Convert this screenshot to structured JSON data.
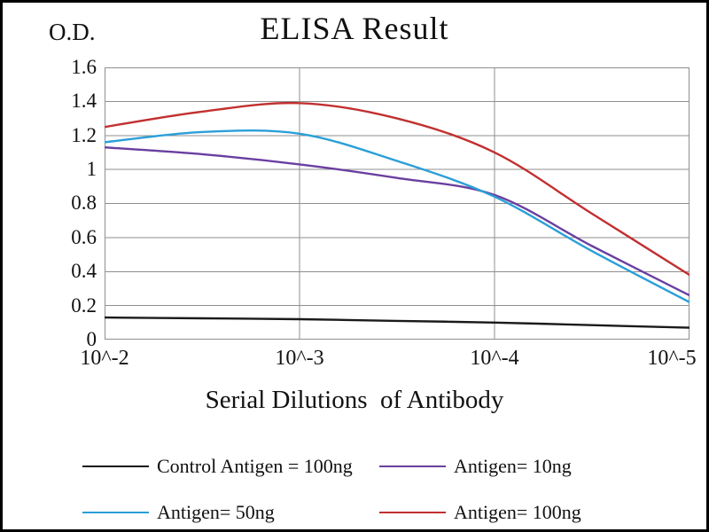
{
  "title": "ELISA Result",
  "y_axis_label": "O.D.",
  "x_axis_label": "Serial Dilutions  of Antibody",
  "chart_data": {
    "type": "line",
    "title": "ELISA Result",
    "xlabel": "Serial Dilutions  of Antibody",
    "ylabel": "O.D.",
    "grid": true,
    "legend_position": "bottom",
    "ylim": [
      0,
      1.6
    ],
    "y_ticks": [
      0,
      0.2,
      0.4,
      0.6,
      0.8,
      1,
      1.2,
      1.4,
      1.6
    ],
    "x_tick_labels": [
      "10^-2",
      "10^-3",
      "10^-4",
      "10^-5"
    ],
    "x_tick_log10": [
      -2,
      -3,
      -4,
      -5
    ],
    "x_log10": [
      -2,
      -2.5,
      -3,
      -3.5,
      -4,
      -4.5,
      -5
    ],
    "series": [
      {
        "name": "Control Antigen = 100ng",
        "color": "#1a1a1a",
        "values": [
          0.13,
          0.125,
          0.12,
          0.11,
          0.1,
          0.085,
          0.07
        ]
      },
      {
        "name": "Antigen= 10ng",
        "color": "#6a3fa0",
        "values": [
          1.13,
          1.09,
          1.03,
          0.95,
          0.85,
          0.55,
          0.26
        ]
      },
      {
        "name": "Antigen= 50ng",
        "color": "#2b9fd8",
        "values": [
          1.16,
          1.22,
          1.21,
          1.05,
          0.84,
          0.52,
          0.22
        ]
      },
      {
        "name": "Antigen= 100ng",
        "color": "#c23030",
        "values": [
          1.25,
          1.34,
          1.39,
          1.3,
          1.1,
          0.74,
          0.38
        ]
      }
    ]
  }
}
